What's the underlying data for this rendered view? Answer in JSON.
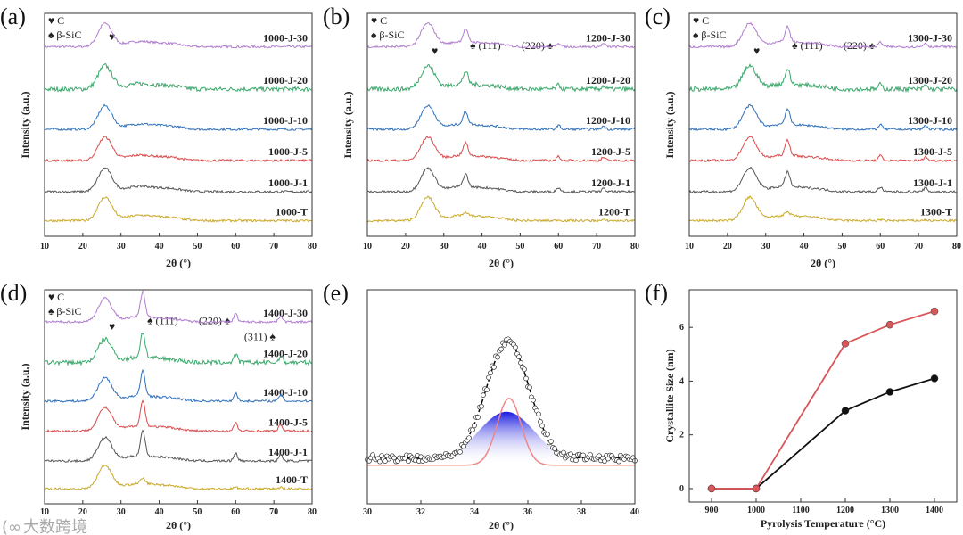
{
  "watermark": "大数跨境",
  "legend": {
    "c": "♥ C",
    "sic": "♠ β-SiC"
  },
  "colors": [
    "#b07cd0",
    "#3aa66a",
    "#2f6fb8",
    "#d94a4a",
    "#555555",
    "#c8a82a"
  ],
  "chart_data": [
    {
      "panel": "(a)",
      "type": "line",
      "xlabel": "2θ (°)",
      "ylabel": "Intensity (a.u.)",
      "xlim": [
        10,
        80
      ],
      "xticks": [
        "10",
        "20",
        "30",
        "40",
        "50",
        "60",
        "70",
        "80"
      ],
      "series": [
        "1000-J-30",
        "1000-J-20",
        "1000-J-10",
        "1000-J-5",
        "1000-J-1",
        "1000-T"
      ],
      "sic": 0,
      "annotations": []
    },
    {
      "panel": "(b)",
      "type": "line",
      "xlabel": "2θ (°)",
      "ylabel": "Intensity (a.u.)",
      "xlim": [
        10,
        80
      ],
      "xticks": [
        "10",
        "20",
        "30",
        "40",
        "50",
        "60",
        "70",
        "80"
      ],
      "series": [
        "1200-J-30",
        "1200-J-20",
        "1200-J-10",
        "1200-J-5",
        "1200-J-1",
        "1200-T"
      ],
      "sic": 0.5,
      "annotations": [
        "(111)",
        "(220)"
      ]
    },
    {
      "panel": "(c)",
      "type": "line",
      "xlabel": "2θ (°)",
      "ylabel": "Intensity (a.u.)",
      "xlim": [
        10,
        80
      ],
      "xticks": [
        "10",
        "20",
        "30",
        "40",
        "50",
        "60",
        "70",
        "80"
      ],
      "series": [
        "1300-J-30",
        "1300-J-20",
        "1300-J-10",
        "1300-J-5",
        "1300-J-1",
        "1300-T"
      ],
      "sic": 0.6,
      "annotations": [
        "(111)",
        "(220)"
      ]
    },
    {
      "panel": "(d)",
      "type": "line",
      "xlabel": "2θ (°)",
      "ylabel": "Intensity (a.u.)",
      "xlim": [
        10,
        80
      ],
      "xticks": [
        "10",
        "20",
        "30",
        "40",
        "50",
        "60",
        "70",
        "80"
      ],
      "series": [
        "1400-J-30",
        "1400-J-20",
        "1400-J-10",
        "1400-J-5",
        "1400-J-1",
        "1400-T"
      ],
      "sic": 1,
      "annotations": [
        "(111)",
        "(220)",
        "(311)"
      ]
    },
    {
      "panel": "(e)",
      "type": "scatter",
      "xlabel": "2θ (°)",
      "xlim": [
        30,
        40
      ],
      "xticks": [
        "30",
        "32",
        "34",
        "36",
        "38",
        "40"
      ],
      "peak_center": 35.3,
      "fits": [
        "data",
        "fit",
        "broad",
        "narrow"
      ]
    },
    {
      "panel": "(f)",
      "type": "line",
      "xlabel": "Pyrolysis Temperature (°C)",
      "ylabel": "Crystallite Size (nm)",
      "xlim": [
        850,
        1450
      ],
      "ylim": [
        -0.5,
        7.4
      ],
      "xticks": [
        "900",
        "1000",
        "1100",
        "1200",
        "1300",
        "1400"
      ],
      "yticks": [
        "0",
        "2",
        "4",
        "6"
      ],
      "x": [
        900,
        1000,
        1200,
        1300,
        1400
      ],
      "series": [
        {
          "name": "black",
          "color": "#111111",
          "values": [
            0,
            0,
            2.9,
            3.6,
            4.1
          ]
        },
        {
          "name": "red",
          "color": "#d9575b",
          "values": [
            0,
            0,
            5.4,
            6.1,
            6.6
          ]
        }
      ]
    }
  ]
}
